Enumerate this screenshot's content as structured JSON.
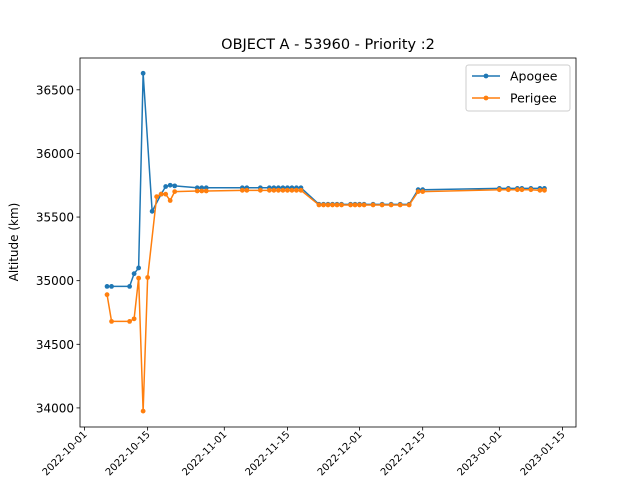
{
  "chart_data": {
    "type": "line",
    "title": "OBJECT A - 53960 - Priority :2",
    "xlabel": "",
    "ylabel": "Altitude (km)",
    "xlim": [
      "2022-09-30",
      "2023-01-18"
    ],
    "ylim": [
      33850,
      36750
    ],
    "grid": false,
    "legend_position": "top-right",
    "x_ticks": [
      "2022-10-01",
      "2022-10-15",
      "2022-11-01",
      "2022-11-15",
      "2022-12-01",
      "2022-12-15",
      "2023-01-01",
      "2023-01-15"
    ],
    "y_ticks": [
      34000,
      34500,
      35000,
      35500,
      36000,
      36500
    ],
    "series": [
      {
        "name": "Apogee",
        "color": "#1f77b4",
        "x": [
          "2022-10-06",
          "2022-10-07",
          "2022-10-11",
          "2022-10-12",
          "2022-10-13",
          "2022-10-14",
          "2022-10-16",
          "2022-10-18",
          "2022-10-19",
          "2022-10-20",
          "2022-10-21",
          "2022-10-26",
          "2022-10-27",
          "2022-10-28",
          "2022-11-05",
          "2022-11-06",
          "2022-11-09",
          "2022-11-11",
          "2022-11-12",
          "2022-11-13",
          "2022-11-14",
          "2022-11-15",
          "2022-11-16",
          "2022-11-17",
          "2022-11-18",
          "2022-11-22",
          "2022-11-23",
          "2022-11-24",
          "2022-11-25",
          "2022-11-26",
          "2022-11-27",
          "2022-11-29",
          "2022-11-30",
          "2022-12-01",
          "2022-12-02",
          "2022-12-04",
          "2022-12-06",
          "2022-12-08",
          "2022-12-10",
          "2022-12-12",
          "2022-12-14",
          "2022-12-15",
          "2023-01-01",
          "2023-01-03",
          "2023-01-05",
          "2023-01-06",
          "2023-01-08",
          "2023-01-10",
          "2023-01-11"
        ],
        "values": [
          34955,
          34955,
          34955,
          35055,
          35100,
          36630,
          35545,
          35680,
          35740,
          35750,
          35745,
          35730,
          35730,
          35730,
          35730,
          35730,
          35730,
          35730,
          35730,
          35730,
          35730,
          35730,
          35730,
          35730,
          35730,
          35600,
          35600,
          35600,
          35600,
          35600,
          35600,
          35600,
          35600,
          35600,
          35600,
          35600,
          35600,
          35600,
          35600,
          35600,
          35715,
          35715,
          35725,
          35725,
          35725,
          35725,
          35725,
          35725,
          35725
        ]
      },
      {
        "name": "Perigee",
        "color": "#ff7f0e",
        "x": [
          "2022-10-06",
          "2022-10-07",
          "2022-10-11",
          "2022-10-12",
          "2022-10-13",
          "2022-10-14",
          "2022-10-15",
          "2022-10-17",
          "2022-10-18",
          "2022-10-19",
          "2022-10-20",
          "2022-10-21",
          "2022-10-26",
          "2022-10-27",
          "2022-10-28",
          "2022-11-05",
          "2022-11-06",
          "2022-11-09",
          "2022-11-11",
          "2022-11-12",
          "2022-11-13",
          "2022-11-14",
          "2022-11-15",
          "2022-11-16",
          "2022-11-17",
          "2022-11-18",
          "2022-11-22",
          "2022-11-23",
          "2022-11-24",
          "2022-11-25",
          "2022-11-26",
          "2022-11-27",
          "2022-11-29",
          "2022-11-30",
          "2022-12-01",
          "2022-12-02",
          "2022-12-04",
          "2022-12-06",
          "2022-12-08",
          "2022-12-10",
          "2022-12-12",
          "2022-12-14",
          "2022-12-15",
          "2023-01-01",
          "2023-01-03",
          "2023-01-05",
          "2023-01-06",
          "2023-01-08",
          "2023-01-10",
          "2023-01-11"
        ],
        "values": [
          34890,
          34680,
          34680,
          34700,
          35020,
          33975,
          35025,
          35660,
          35680,
          35680,
          35630,
          35700,
          35705,
          35705,
          35705,
          35710,
          35710,
          35710,
          35710,
          35710,
          35710,
          35710,
          35710,
          35710,
          35710,
          35710,
          35595,
          35595,
          35595,
          35595,
          35595,
          35595,
          35595,
          35595,
          35595,
          35595,
          35595,
          35595,
          35595,
          35595,
          35595,
          35700,
          35700,
          35715,
          35715,
          35715,
          35715,
          35715,
          35710,
          35710
        ]
      }
    ]
  }
}
